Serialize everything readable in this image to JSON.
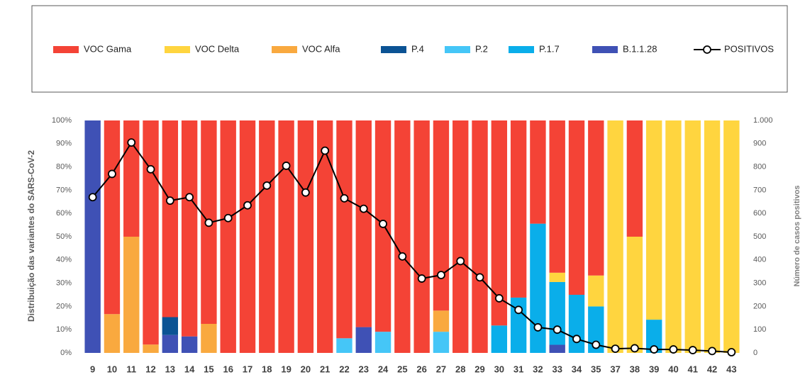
{
  "chart_data": {
    "type": "bar",
    "stacked": true,
    "categories": [
      "9",
      "10",
      "11",
      "12",
      "13",
      "14",
      "15",
      "16",
      "17",
      "18",
      "19",
      "20",
      "21",
      "22",
      "23",
      "24",
      "25",
      "26",
      "27",
      "28",
      "29",
      "30",
      "31",
      "32",
      "33",
      "34",
      "35",
      "37",
      "38",
      "39",
      "40",
      "41",
      "42",
      "43"
    ],
    "ylabel": "Distribuição das variantes do SARS-CoV-2",
    "y2label": "Número de casos positivos",
    "ylim": [
      0,
      100
    ],
    "yticks": [
      {
        "value": 0,
        "label": "0%"
      },
      {
        "value": 10,
        "label": "10%"
      },
      {
        "value": 20,
        "label": "20%"
      },
      {
        "value": 30,
        "label": "30%"
      },
      {
        "value": 40,
        "label": "40%"
      },
      {
        "value": 50,
        "label": "50%"
      },
      {
        "value": 60,
        "label": "60%"
      },
      {
        "value": 70,
        "label": "70%"
      },
      {
        "value": 80,
        "label": "80%"
      },
      {
        "value": 90,
        "label": "90%"
      },
      {
        "value": 100,
        "label": "100%"
      }
    ],
    "y2lim": [
      0,
      1000
    ],
    "y2ticks": [
      0,
      100,
      200,
      300,
      400,
      500,
      600,
      700,
      800,
      900,
      {
        "value": 1000,
        "label": "1.000"
      }
    ],
    "grid": false,
    "series": [
      {
        "name": "VOC Gama",
        "color": "#f44336",
        "values": [
          0,
          83.3,
          50,
          96.4,
          84.6,
          92.9,
          87.5,
          100,
          100,
          100,
          100,
          100,
          100,
          93.7,
          88.9,
          90.9,
          100,
          100,
          81.8,
          100,
          100,
          88.2,
          76.2,
          44.4,
          65.5,
          75,
          66.7,
          0,
          50,
          0,
          0,
          0,
          0,
          0
        ]
      },
      {
        "name": "VOC Delta",
        "color": "#ffd53f",
        "values": [
          0,
          0,
          0,
          0,
          0,
          0,
          0,
          0,
          0,
          0,
          0,
          0,
          0,
          0,
          0,
          0,
          0,
          0,
          0,
          0,
          0,
          0,
          0,
          0,
          4,
          0,
          13.3,
          100,
          50,
          85.7,
          100,
          100,
          100,
          100
        ]
      },
      {
        "name": "VOC Alfa",
        "color": "#f9a93f",
        "values": [
          0,
          16.7,
          50,
          3.6,
          0,
          0,
          12.5,
          0,
          0,
          0,
          0,
          0,
          0,
          0,
          0,
          0,
          0,
          0,
          9.1,
          0,
          0,
          0,
          0,
          0,
          0,
          0,
          0,
          0,
          0,
          0,
          0,
          0,
          0,
          0
        ]
      },
      {
        "name": "P.4",
        "color": "#0b5394",
        "values": [
          0,
          0,
          0,
          0,
          7.7,
          0,
          0,
          0,
          0,
          0,
          0,
          0,
          0,
          0,
          0,
          0,
          0,
          0,
          0,
          0,
          0,
          0,
          0,
          0,
          0,
          0,
          0,
          0,
          0,
          0,
          0,
          0,
          0,
          0
        ]
      },
      {
        "name": "P.2",
        "color": "#45c6f7",
        "values": [
          0,
          0,
          0,
          0,
          0,
          0,
          0,
          0,
          0,
          0,
          0,
          0,
          0,
          6.3,
          0,
          9.1,
          0,
          0,
          9.1,
          0,
          0,
          0,
          0,
          0,
          0,
          0,
          0,
          0,
          0,
          0,
          0,
          0,
          0,
          0
        ]
      },
      {
        "name": "P.1.7",
        "color": "#0aaeea",
        "values": [
          0,
          0,
          0,
          0,
          0,
          0,
          0,
          0,
          0,
          0,
          0,
          0,
          0,
          0,
          0,
          0,
          0,
          0,
          0,
          0,
          0,
          11.8,
          23.8,
          55.6,
          27,
          25,
          20,
          0,
          0,
          14.3,
          0,
          0,
          0,
          0
        ]
      },
      {
        "name": "B.1.1.28",
        "color": "#3f51b5",
        "values": [
          100,
          0,
          0,
          0,
          7.7,
          7.1,
          0,
          0,
          0,
          0,
          0,
          0,
          0,
          0,
          11.1,
          0,
          0,
          0,
          0,
          0,
          0,
          0,
          0,
          0,
          3.5,
          0,
          0,
          0,
          0,
          0,
          0,
          0,
          0,
          0
        ]
      },
      {
        "name": "POSITIVOS",
        "color": "#000000",
        "type": "line",
        "axis": "y2",
        "values": [
          670,
          770,
          905,
          790,
          655,
          670,
          560,
          580,
          635,
          720,
          805,
          690,
          870,
          665,
          620,
          555,
          415,
          320,
          335,
          395,
          325,
          235,
          185,
          110,
          100,
          60,
          35,
          18,
          20,
          15,
          15,
          12,
          8,
          3
        ]
      }
    ]
  }
}
